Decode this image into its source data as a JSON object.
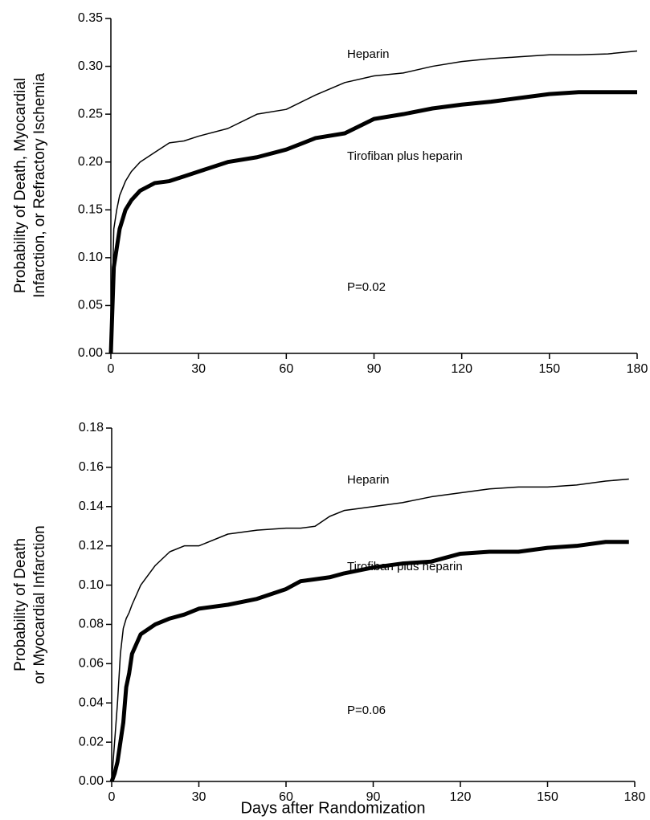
{
  "chart_data": [
    {
      "type": "line",
      "ylabel": [
        "Probability of Death, Myocardial",
        "Infarction, or Refractory Ischemia"
      ],
      "annotations": [
        "Heparin",
        "Tirofiban plus heparin",
        "P=0.02"
      ],
      "x": [
        0,
        1,
        2,
        3,
        5,
        7,
        10,
        15,
        20,
        25,
        30,
        40,
        50,
        60,
        70,
        80,
        90,
        100,
        110,
        120,
        130,
        140,
        150,
        160,
        170,
        180
      ],
      "series": [
        {
          "name": "Heparin",
          "color": "#000000",
          "values": [
            0,
            0.13,
            0.15,
            0.165,
            0.18,
            0.19,
            0.2,
            0.21,
            0.22,
            0.222,
            0.227,
            0.235,
            0.25,
            0.255,
            0.27,
            0.283,
            0.29,
            0.293,
            0.3,
            0.305,
            0.308,
            0.31,
            0.312,
            0.312,
            0.313,
            0.316
          ]
        },
        {
          "name": "Tirofiban plus heparin",
          "color": "#000000",
          "values": [
            0,
            0.09,
            0.11,
            0.13,
            0.15,
            0.16,
            0.17,
            0.178,
            0.18,
            0.185,
            0.19,
            0.2,
            0.205,
            0.213,
            0.225,
            0.23,
            0.245,
            0.25,
            0.256,
            0.26,
            0.263,
            0.267,
            0.271,
            0.273,
            0.273,
            0.273
          ]
        }
      ],
      "xlim": [
        0,
        180
      ],
      "xticks": [
        0,
        30,
        60,
        90,
        120,
        150,
        180
      ],
      "ylim": [
        0,
        0.35
      ],
      "yticks": [
        {
          "value": 0,
          "label": "0.00"
        },
        {
          "value": 0.05,
          "label": "0.05"
        },
        {
          "value": 0.1,
          "label": "0.10"
        },
        {
          "value": 0.15,
          "label": "0.15"
        },
        {
          "value": 0.2,
          "label": "0.20"
        },
        {
          "value": 0.25,
          "label": "0.25"
        },
        {
          "value": 0.3,
          "label": "0.30"
        },
        {
          "value": 0.35,
          "label": "0.35"
        }
      ]
    },
    {
      "type": "line",
      "ylabel": [
        "Probability of Death",
        "or Myocardial Infarction"
      ],
      "xlabel": "Days after Randomization",
      "annotations": [
        "Heparin",
        "Tirofiban plus heparin",
        "P=0.06"
      ],
      "x": [
        0,
        1,
        2,
        3,
        4,
        5,
        6,
        7,
        10,
        15,
        20,
        25,
        30,
        40,
        50,
        60,
        65,
        70,
        75,
        80,
        90,
        100,
        110,
        120,
        130,
        140,
        150,
        160,
        170,
        178
      ],
      "series": [
        {
          "name": "Heparin",
          "color": "#000000",
          "values": [
            0,
            0.02,
            0.04,
            0.065,
            0.078,
            0.083,
            0.086,
            0.09,
            0.1,
            0.11,
            0.117,
            0.12,
            0.12,
            0.126,
            0.128,
            0.129,
            0.129,
            0.13,
            0.135,
            0.138,
            0.14,
            0.142,
            0.145,
            0.147,
            0.149,
            0.15,
            0.15,
            0.151,
            0.153,
            0.154
          ]
        },
        {
          "name": "Tirofiban plus heparin",
          "color": "#000000",
          "values": [
            0,
            0.004,
            0.01,
            0.02,
            0.03,
            0.048,
            0.055,
            0.065,
            0.075,
            0.08,
            0.083,
            0.085,
            0.088,
            0.09,
            0.093,
            0.098,
            0.102,
            0.103,
            0.104,
            0.106,
            0.109,
            0.111,
            0.112,
            0.116,
            0.117,
            0.117,
            0.119,
            0.12,
            0.122,
            0.122
          ]
        }
      ],
      "xlim": [
        0,
        180
      ],
      "xticks": [
        0,
        30,
        60,
        90,
        120,
        150,
        180
      ],
      "ylim": [
        0,
        0.18
      ],
      "yticks": [
        {
          "value": 0,
          "label": "0.00"
        },
        {
          "value": 0.02,
          "label": "0.02"
        },
        {
          "value": 0.04,
          "label": "0.04"
        },
        {
          "value": 0.06,
          "label": "0.06"
        },
        {
          "value": 0.08,
          "label": "0.08"
        },
        {
          "value": 0.1,
          "label": "0.10"
        },
        {
          "value": 0.12,
          "label": "0.12"
        },
        {
          "value": 0.14,
          "label": "0.14"
        },
        {
          "value": 0.16,
          "label": "0.16"
        },
        {
          "value": 0.18,
          "label": "0.18"
        }
      ]
    }
  ]
}
